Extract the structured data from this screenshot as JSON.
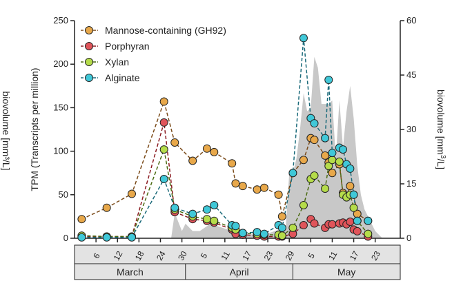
{
  "chart_data": {
    "type": "line",
    "ylabel": "TPM (Transcripts per million)",
    "y2label_prefix": "biovolume [mm",
    "y2label_sup": "3",
    "y2label_suffix": "/L]",
    "left_edge_fragment": "biovolume [mm³/L]",
    "ylim": [
      0,
      250
    ],
    "yticks": [
      0,
      50,
      100,
      150,
      200,
      250
    ],
    "y2lim": [
      0,
      60
    ],
    "y2ticks": [
      0,
      15,
      30,
      45,
      60
    ],
    "date_ticks": [
      {
        "label": "6",
        "day": 6
      },
      {
        "label": "12",
        "day": 12
      },
      {
        "label": "18",
        "day": 18
      },
      {
        "label": "24",
        "day": 24
      },
      {
        "label": "30",
        "day": 30
      },
      {
        "label": "5",
        "day": 36
      },
      {
        "label": "11",
        "day": 42
      },
      {
        "label": "17",
        "day": 48
      },
      {
        "label": "23",
        "day": 54
      },
      {
        "label": "29",
        "day": 60
      },
      {
        "label": "5",
        "day": 66
      },
      {
        "label": "11",
        "day": 72
      },
      {
        "label": "17",
        "day": 78
      },
      {
        "label": "23",
        "day": 84
      }
    ],
    "months": [
      {
        "label": "March",
        "start": 0,
        "end": 31
      },
      {
        "label": "April",
        "start": 31,
        "end": 61
      },
      {
        "label": "May",
        "start": 61,
        "end": 91
      }
    ],
    "xlim": [
      0,
      91
    ],
    "series": [
      {
        "name": "Mannose-containing (GH92)",
        "color": "#e8a84a",
        "line": "#7a4a18",
        "x": [
          2,
          9,
          16,
          25,
          28,
          33,
          37,
          39,
          44,
          45,
          47,
          51,
          53,
          57,
          58,
          61,
          64,
          66,
          67,
          70,
          71,
          72,
          74,
          75,
          76,
          77,
          78,
          79,
          82
        ],
        "y": [
          22,
          35,
          51,
          157,
          110,
          89,
          103,
          99,
          86,
          63,
          60,
          56,
          58,
          50,
          25,
          75,
          90,
          115,
          113,
          95,
          87,
          75,
          85,
          52,
          48,
          60,
          50,
          28,
          20
        ]
      },
      {
        "name": "Porphyran",
        "color": "#e0545a",
        "line": "#8a1a20",
        "x": [
          2,
          9,
          16,
          25,
          28,
          33,
          37,
          39,
          44,
          45,
          47,
          51,
          53,
          57,
          58,
          61,
          64,
          66,
          67,
          70,
          71,
          72,
          74,
          75,
          76,
          77,
          78,
          79,
          82
        ],
        "y": [
          2,
          2,
          2,
          133,
          30,
          22,
          20,
          18,
          10,
          5,
          4,
          3,
          2,
          2,
          2,
          5,
          15,
          22,
          17,
          12,
          16,
          16,
          17,
          18,
          16,
          19,
          10,
          8,
          2
        ]
      },
      {
        "name": "Xylan",
        "color": "#b5dc4a",
        "line": "#4a6a10",
        "x": [
          2,
          9,
          16,
          25,
          28,
          33,
          37,
          39,
          44,
          45,
          47,
          51,
          53,
          57,
          58,
          61,
          64,
          66,
          67,
          70,
          71,
          72,
          74,
          75,
          76,
          77,
          78,
          79,
          82
        ],
        "y": [
          3,
          2,
          2,
          102,
          33,
          25,
          22,
          20,
          12,
          10,
          6,
          5,
          4,
          4,
          3,
          12,
          38,
          68,
          72,
          57,
          83,
          90,
          88,
          50,
          47,
          50,
          35,
          20,
          5
        ]
      },
      {
        "name": "Alginate",
        "color": "#40c8d8",
        "line": "#1a6a7a",
        "x": [
          2,
          9,
          16,
          25,
          28,
          33,
          37,
          39,
          44,
          45,
          47,
          51,
          53,
          57,
          58,
          61,
          64,
          66,
          67,
          70,
          71,
          72,
          74,
          75,
          76,
          77,
          78,
          79,
          82
        ],
        "y": [
          1,
          1,
          1,
          68,
          35,
          28,
          33,
          38,
          15,
          14,
          6,
          7,
          5,
          15,
          12,
          75,
          230,
          138,
          132,
          115,
          182,
          98,
          104,
          102,
          85,
          80,
          50,
          20,
          20
        ]
      }
    ],
    "biovolume": {
      "color": "#c8c8c8",
      "x": [
        27,
        28,
        30,
        31,
        33,
        35,
        38,
        41,
        44,
        47,
        50,
        53,
        56,
        59,
        60,
        61,
        62,
        63,
        64,
        65,
        66,
        67,
        68,
        69,
        70,
        71,
        72,
        73,
        74,
        75,
        76,
        77,
        78,
        79,
        80,
        81,
        82,
        84,
        86
      ],
      "y": [
        0,
        7,
        2,
        4,
        2,
        2,
        4,
        3,
        2,
        1.5,
        1,
        1,
        2,
        3,
        18,
        18,
        22,
        30,
        40,
        35,
        36,
        50,
        47,
        37,
        37,
        37,
        38,
        22,
        38,
        25,
        35,
        42,
        33,
        20,
        12,
        8,
        6,
        2,
        0
      ]
    },
    "legend_placement": "top-left"
  }
}
